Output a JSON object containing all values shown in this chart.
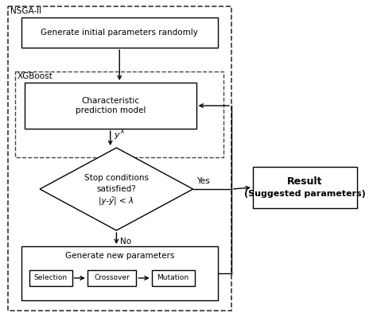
{
  "bg_color": "#ffffff",
  "nsga_label": "NSGA-II",
  "xgb_label": "XGBoost",
  "box1_text": "Generate initial parameters randomly",
  "box2_text": "Characteristic\nprediction model",
  "diamond_line1": "Stop conditions",
  "diamond_line2": "satisfied?",
  "diamond_line3": "|y-ŷ| < λ",
  "diamond_yes": "Yes",
  "diamond_no": "No",
  "box3_text": "Generate new parameters",
  "box_sel": "Selection",
  "box_cro": "Crossover",
  "box_mut": "Mutation",
  "result_line1": "Result",
  "result_line2": "(Suggested parameters)",
  "y_hat_label": "ŷ"
}
